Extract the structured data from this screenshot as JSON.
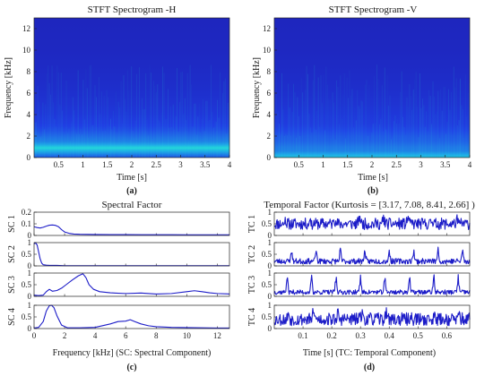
{
  "colors": {
    "spectrogram_low": "#1d1fb4",
    "spectrogram_mid": "#2040e6",
    "spectrogram_band": "#1fa5e8",
    "spectrogram_peak": "#25e0d8",
    "trace": "#1c1cc8",
    "axes": "#222222"
  },
  "chart_data": [
    {
      "id": "a",
      "type": "heatmap",
      "title": "STFT Spectrogram -H",
      "xlabel": "Time [s]",
      "ylabel": "Frequency [kHz]",
      "panel_label": "(a)",
      "xlim": [
        0,
        4
      ],
      "ylim": [
        0,
        13
      ],
      "xticks": [
        0.5,
        1,
        1.5,
        2,
        2.5,
        3,
        3.5,
        4
      ],
      "xtick_labels": [
        "0.5",
        "1",
        "1.5",
        "2",
        "2.5",
        "3",
        "3.5",
        "4"
      ],
      "yticks": [
        0,
        2,
        4,
        6,
        8,
        10,
        12
      ],
      "ytick_labels": [
        "0",
        "2",
        "4",
        "6",
        "8",
        "10",
        "12"
      ],
      "energy_profile": {
        "freq_khz": [
          0,
          0.3,
          0.6,
          0.9,
          1.2,
          1.5,
          2.0,
          2.5,
          3.0,
          4.0,
          5.0,
          6.5,
          8.0,
          10.0,
          13.0
        ],
        "level": [
          0.35,
          0.55,
          0.75,
          0.95,
          0.7,
          0.55,
          0.45,
          0.35,
          0.28,
          0.22,
          0.18,
          0.14,
          0.11,
          0.08,
          0.06
        ]
      }
    },
    {
      "id": "b",
      "type": "heatmap",
      "title": "STFT Spectrogram -V",
      "xlabel": "Time [s]",
      "ylabel": "Frequency [kHz]",
      "panel_label": "(b)",
      "xlim": [
        0,
        4
      ],
      "ylim": [
        0,
        13
      ],
      "xticks": [
        0.5,
        1,
        1.5,
        2,
        2.5,
        3,
        3.5,
        4
      ],
      "xtick_labels": [
        "0.5",
        "1",
        "1.5",
        "2",
        "2.5",
        "3",
        "3.5",
        "4"
      ],
      "yticks": [
        0,
        2,
        4,
        6,
        8,
        10,
        12
      ],
      "ytick_labels": [
        "0",
        "2",
        "4",
        "6",
        "8",
        "10",
        "12"
      ],
      "energy_profile": {
        "freq_khz": [
          0,
          0.3,
          0.6,
          1.0,
          1.5,
          2.0,
          2.5,
          3.0,
          4.0,
          5.0,
          6.5,
          8.0,
          10.0,
          13.0
        ],
        "level": [
          0.85,
          0.7,
          0.55,
          0.5,
          0.42,
          0.38,
          0.32,
          0.26,
          0.22,
          0.18,
          0.14,
          0.11,
          0.08,
          0.06
        ]
      }
    },
    {
      "id": "c",
      "type": "line",
      "title": "Spectral Factor",
      "xlabel": "Frequency [kHz] (SC: Spectral Component)",
      "panel_label": "(c)",
      "xlim": [
        0,
        12.8
      ],
      "xticks": [
        0,
        2,
        4,
        6,
        8,
        10,
        12
      ],
      "xtick_labels": [
        "0",
        "2",
        "4",
        "6",
        "8",
        "10",
        "12"
      ],
      "series": [
        {
          "name": "SC 1",
          "ylim": [
            0,
            0.2
          ],
          "yticks": [
            0,
            0.1,
            0.2
          ],
          "ytick_labels": [
            "0",
            "0.1",
            "0.2"
          ],
          "x": [
            0,
            0.2,
            0.4,
            0.6,
            0.8,
            1.0,
            1.2,
            1.4,
            1.6,
            1.8,
            2.0,
            2.3,
            2.6,
            3.0,
            4.0,
            5.0,
            6.0,
            7.0,
            8.0,
            9.0,
            10.0,
            11.0,
            12.0,
            12.8
          ],
          "y": [
            0.075,
            0.068,
            0.064,
            0.07,
            0.08,
            0.088,
            0.09,
            0.087,
            0.075,
            0.05,
            0.03,
            0.018,
            0.012,
            0.01,
            0.008,
            0.007,
            0.007,
            0.006,
            0.006,
            0.006,
            0.005,
            0.005,
            0.005,
            0.005
          ]
        },
        {
          "name": "SC 2",
          "ylim": [
            0,
            1
          ],
          "yticks": [
            0,
            0.5,
            1
          ],
          "ytick_labels": [
            "0",
            "0.5",
            "1"
          ],
          "x": [
            0,
            0.1,
            0.2,
            0.3,
            0.4,
            0.5,
            0.6,
            0.8,
            1.0,
            1.5,
            2.0,
            3.0,
            4.0,
            6.0,
            8.0,
            10.0,
            12.8
          ],
          "y": [
            0.95,
            0.98,
            0.9,
            0.6,
            0.3,
            0.12,
            0.05,
            0.03,
            0.02,
            0.02,
            0.01,
            0.01,
            0.01,
            0.01,
            0.01,
            0.01,
            0.01
          ]
        },
        {
          "name": "SC 3",
          "ylim": [
            0,
            1
          ],
          "yticks": [
            0,
            0.5,
            1
          ],
          "ytick_labels": [
            "0",
            "0.5",
            "1"
          ],
          "x": [
            0,
            0.3,
            0.6,
            0.8,
            1.0,
            1.2,
            1.5,
            1.8,
            2.1,
            2.5,
            2.9,
            3.2,
            3.4,
            3.6,
            3.9,
            4.3,
            5.0,
            6.0,
            7.0,
            8.0,
            9.0,
            10.0,
            10.5,
            11.0,
            11.5,
            12.0,
            12.8
          ],
          "y": [
            0.05,
            0.03,
            0.05,
            0.2,
            0.3,
            0.22,
            0.25,
            0.35,
            0.5,
            0.7,
            0.88,
            0.97,
            0.8,
            0.5,
            0.3,
            0.2,
            0.15,
            0.12,
            0.14,
            0.1,
            0.12,
            0.2,
            0.24,
            0.2,
            0.15,
            0.12,
            0.1
          ]
        },
        {
          "name": "SC 4",
          "ylim": [
            0,
            1
          ],
          "yticks": [
            0,
            0.5,
            1
          ],
          "ytick_labels": [
            "0",
            "0.5",
            "1"
          ],
          "x": [
            0,
            0.3,
            0.6,
            0.8,
            1.0,
            1.15,
            1.3,
            1.5,
            1.8,
            2.2,
            3.0,
            4.0,
            5.0,
            5.5,
            6.0,
            6.3,
            6.6,
            7.0,
            7.5,
            8.0,
            9.0,
            10.0,
            11.0,
            12.0,
            12.8
          ],
          "y": [
            0.02,
            0.05,
            0.3,
            0.75,
            0.98,
            1.0,
            0.9,
            0.55,
            0.15,
            0.03,
            0.03,
            0.05,
            0.2,
            0.3,
            0.32,
            0.38,
            0.3,
            0.2,
            0.12,
            0.08,
            0.05,
            0.04,
            0.03,
            0.02,
            0.02
          ]
        }
      ]
    },
    {
      "id": "d",
      "type": "line",
      "title": "Temporal Factor (Kurtosis = [3.17, 7.08, 8.41, 2.66] )",
      "xlabel": "Time [s] (TC: Temporal Component)",
      "panel_label": "(d)",
      "xlim": [
        0,
        0.68
      ],
      "xticks": [
        0.1,
        0.2,
        0.3,
        0.4,
        0.5,
        0.6
      ],
      "xtick_labels": [
        "0.1",
        "0.2",
        "0.3",
        "0.4",
        "0.5",
        "0.6"
      ],
      "series": [
        {
          "name": "TC 1",
          "ylim": [
            0,
            1
          ],
          "yticks": [
            0,
            0.5,
            1
          ],
          "ytick_labels": [
            "0",
            "0.5",
            "1"
          ],
          "kurtosis": 3.17,
          "baseline": 0.5,
          "noise": 0.25,
          "spike": 0.25,
          "period": 0.085,
          "phase": 0.04,
          "seed": 11
        },
        {
          "name": "TC 2",
          "ylim": [
            0,
            1
          ],
          "yticks": [
            0,
            0.5,
            1
          ],
          "ytick_labels": [
            "0",
            "0.5",
            "1"
          ],
          "kurtosis": 7.08,
          "baseline": 0.2,
          "noise": 0.12,
          "spike": 0.55,
          "period": 0.085,
          "phase": 0.06,
          "seed": 23
        },
        {
          "name": "TC 3",
          "ylim": [
            0,
            1
          ],
          "yticks": [
            0,
            0.5,
            1
          ],
          "ytick_labels": [
            "0",
            "0.5",
            "1"
          ],
          "kurtosis": 8.41,
          "baseline": 0.18,
          "noise": 0.1,
          "spike": 0.75,
          "period": 0.085,
          "phase": 0.045,
          "seed": 37
        },
        {
          "name": "TC 4",
          "ylim": [
            0,
            1
          ],
          "yticks": [
            0,
            0.5,
            1
          ],
          "ytick_labels": [
            "0",
            "0.5",
            "1"
          ],
          "kurtosis": 2.66,
          "baseline": 0.4,
          "noise": 0.28,
          "spike": 0.3,
          "period": 0.085,
          "phase": 0.05,
          "seed": 53
        }
      ]
    }
  ]
}
